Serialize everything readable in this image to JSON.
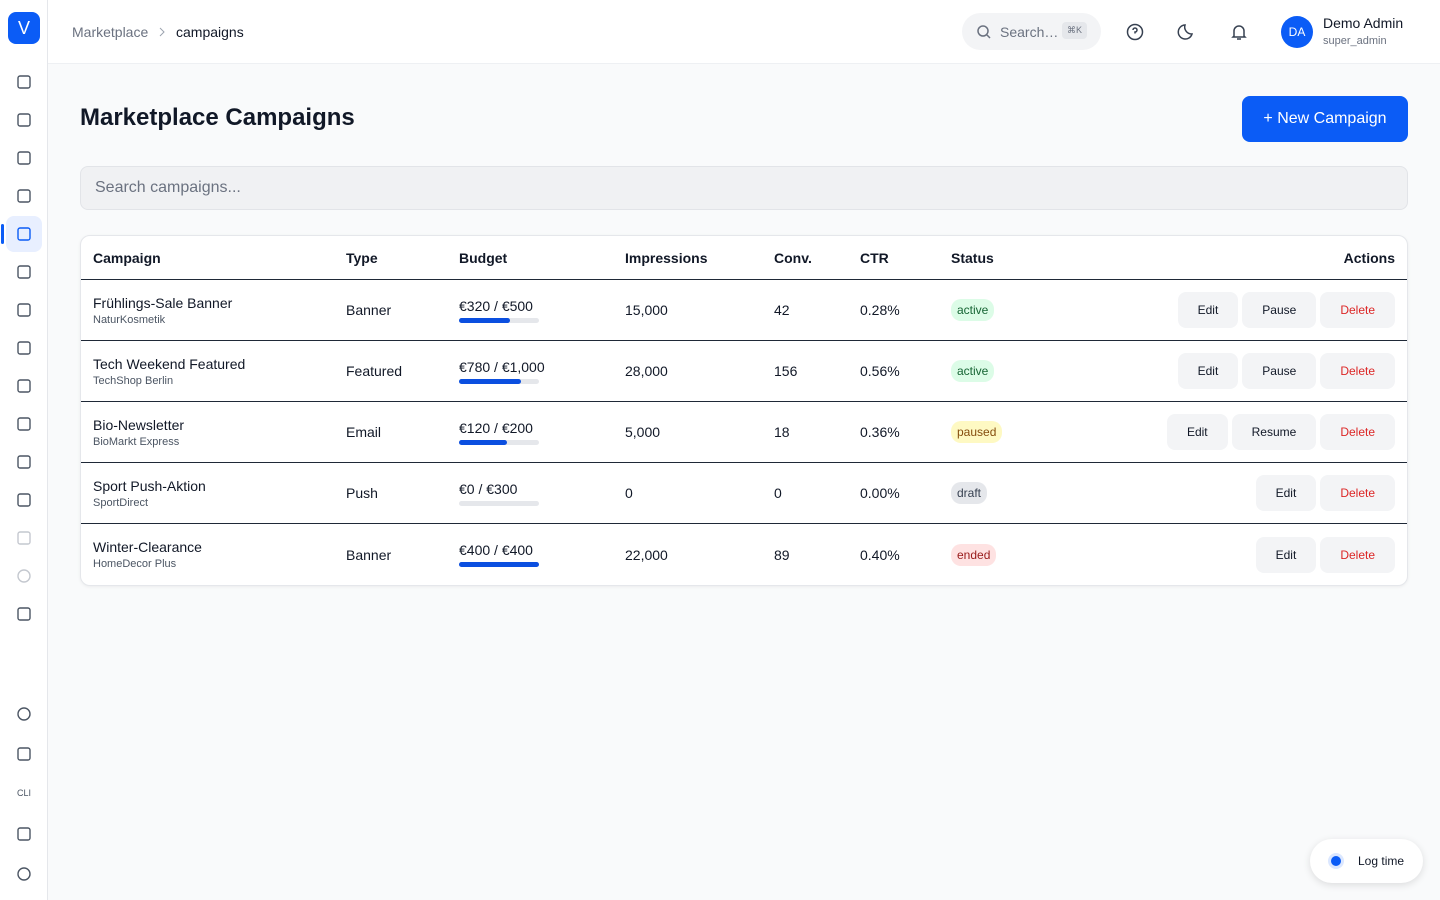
{
  "sidebar": {
    "logo": "V",
    "cli": "CLI"
  },
  "header": {
    "breadcrumb": [
      "Marketplace",
      "campaigns"
    ],
    "search": "Search…",
    "shortcut": "⌘K",
    "user_initials": "DA",
    "user_name": "Demo Admin",
    "user_role": "super_admin"
  },
  "page": {
    "title": "Marketplace Campaigns",
    "new_button": "+ New Campaign",
    "search_placeholder": "Search campaigns..."
  },
  "table": {
    "columns": [
      "Campaign",
      "Type",
      "Budget",
      "Impressions",
      "Conv.",
      "CTR",
      "Status",
      "Actions"
    ],
    "rows": [
      {
        "name": "Frühlings-Sale Banner",
        "company": "NaturKosmetik",
        "type": "Banner",
        "budget_label": "€320 / €500",
        "budget_spent": 320,
        "budget_total": 500,
        "impressions": "15,000",
        "conversions": "42",
        "ctr": "0.28%",
        "status": "active",
        "actions": [
          "Edit",
          "Pause",
          "Delete"
        ]
      },
      {
        "name": "Tech Weekend Featured",
        "company": "TechShop Berlin",
        "type": "Featured",
        "budget_label": "€780 / €1,000",
        "budget_spent": 780,
        "budget_total": 1000,
        "impressions": "28,000",
        "conversions": "156",
        "ctr": "0.56%",
        "status": "active",
        "actions": [
          "Edit",
          "Pause",
          "Delete"
        ]
      },
      {
        "name": "Bio-Newsletter",
        "company": "BioMarkt Express",
        "type": "Email",
        "budget_label": "€120 / €200",
        "budget_spent": 120,
        "budget_total": 200,
        "impressions": "5,000",
        "conversions": "18",
        "ctr": "0.36%",
        "status": "paused",
        "actions": [
          "Edit",
          "Resume",
          "Delete"
        ]
      },
      {
        "name": "Sport Push-Aktion",
        "company": "SportDirect",
        "type": "Push",
        "budget_label": "€0 / €300",
        "budget_spent": 0,
        "budget_total": 300,
        "impressions": "0",
        "conversions": "0",
        "ctr": "0.00%",
        "status": "draft",
        "actions": [
          "Edit",
          "Delete"
        ]
      },
      {
        "name": "Winter-Clearance",
        "company": "HomeDecor Plus",
        "type": "Banner",
        "budget_label": "€400 / €400",
        "budget_spent": 400,
        "budget_total": 400,
        "impressions": "22,000",
        "conversions": "89",
        "ctr": "0.40%",
        "status": "ended",
        "actions": [
          "Edit",
          "Delete"
        ]
      }
    ]
  },
  "log_time": "Log time"
}
